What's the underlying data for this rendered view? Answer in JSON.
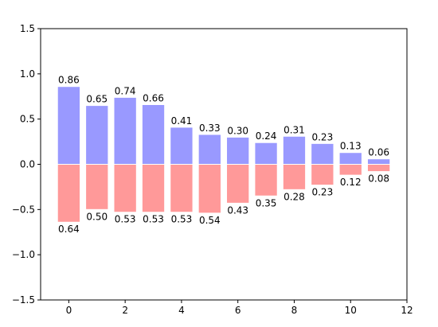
{
  "chart_data": {
    "type": "bar",
    "x": [
      0,
      1,
      2,
      3,
      4,
      5,
      6,
      7,
      8,
      9,
      10,
      11
    ],
    "series": [
      {
        "values": [
          0.86,
          0.65,
          0.74,
          0.66,
          0.41,
          0.33,
          0.3,
          0.24,
          0.31,
          0.23,
          0.13,
          0.06
        ],
        "labels": [
          "0.86",
          "0.65",
          "0.74",
          "0.66",
          "0.41",
          "0.33",
          "0.30",
          "0.24",
          "0.31",
          "0.23",
          "0.13",
          "0.06"
        ],
        "color": "#9999ff"
      },
      {
        "values": [
          -0.64,
          -0.5,
          -0.53,
          -0.53,
          -0.53,
          -0.54,
          -0.43,
          -0.35,
          -0.28,
          -0.23,
          -0.12,
          -0.08
        ],
        "labels": [
          "0.64",
          "0.50",
          "0.53",
          "0.53",
          "0.53",
          "0.54",
          "0.43",
          "0.35",
          "0.28",
          "0.23",
          "0.12",
          "0.08"
        ],
        "color": "#ff9999"
      }
    ],
    "xlim": [
      -1,
      12
    ],
    "ylim": [
      -1.5,
      1.5
    ],
    "xticks": [
      0,
      2,
      4,
      6,
      8,
      10,
      12
    ],
    "xtick_labels": [
      "0",
      "2",
      "4",
      "6",
      "8",
      "10",
      "12"
    ],
    "yticks": [
      -1.5,
      -1.0,
      -0.5,
      0.0,
      0.5,
      1.0,
      1.5
    ],
    "ytick_labels": [
      "−1.5",
      "−1.0",
      "−0.5",
      "0.0",
      "0.5",
      "1.0",
      "1.5"
    ],
    "bar_width": 0.8,
    "grid": false,
    "legend": "none",
    "title": "",
    "xlabel": "",
    "ylabel": ""
  }
}
